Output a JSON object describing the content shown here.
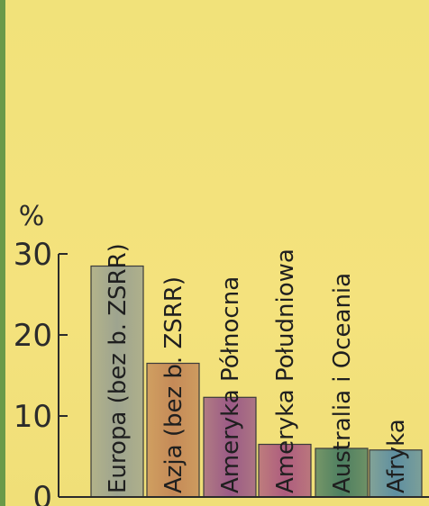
{
  "chart_data": {
    "type": "bar",
    "ylabel": "%",
    "ylim": [
      0,
      30
    ],
    "yticks": [
      0,
      10,
      20,
      30
    ],
    "categories": [
      "Europa (bez b. ZSRR)",
      "Azja (bez b. ZSRR)",
      "Ameryka Północna",
      "Ameryka Południowa",
      "Australia i Oceania",
      "Afryka"
    ],
    "values": [
      28.5,
      16.5,
      12.3,
      6.5,
      6.0,
      5.8
    ],
    "bar_colors": [
      "#9ea48f",
      "#c58a58",
      "#9b5a86",
      "#ad5c7e",
      "#4d7e61",
      "#5e8fa1"
    ],
    "grid": false
  },
  "colors": {
    "background": "#f2e27a",
    "border": "#6a9a49",
    "axis": "#2b2b2b"
  }
}
